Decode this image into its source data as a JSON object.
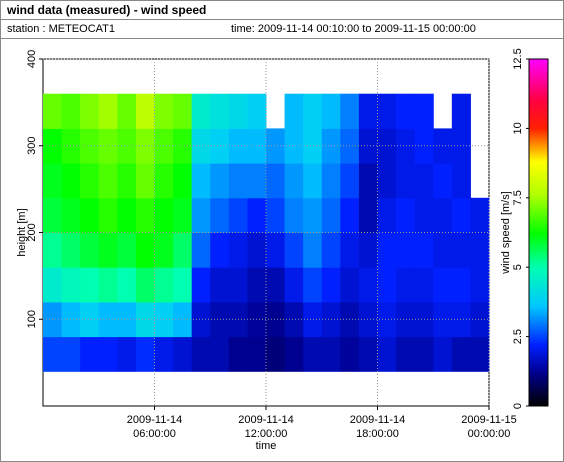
{
  "chart_data": {
    "type": "heatmap",
    "title": "wind data (measured) - wind speed",
    "station": "station : METEOCAT1",
    "time_range": "time: 2009-11-14 00:10:00 to 2009-11-15 00:00:00",
    "xlabel": "time",
    "ylabel": "height [m]",
    "colorbar_label": "wind speed [m/s]",
    "xlim": [
      0,
      24
    ],
    "ylim": [
      0,
      400
    ],
    "xticks": [
      {
        "value": 6,
        "date": "2009-11-14",
        "label": "06:00:00"
      },
      {
        "value": 12,
        "date": "2009-11-14",
        "label": "12:00:00"
      },
      {
        "value": 18,
        "date": "2009-11-14",
        "label": "18:00:00"
      },
      {
        "value": 24,
        "date": "2009-11-15",
        "label": "00:00:00"
      }
    ],
    "yticks": [
      100,
      200,
      300,
      400
    ],
    "grid": true,
    "x": [
      0.5,
      1.5,
      2.5,
      3.5,
      4.5,
      5.5,
      6.5,
      7.5,
      8.5,
      9.5,
      10.5,
      11.5,
      12.5,
      13.5,
      14.5,
      15.5,
      16.5,
      17.5,
      18.5,
      19.5,
      20.5,
      21.5,
      22.5,
      23.5
    ],
    "y": [
      60,
      100,
      140,
      180,
      220,
      260,
      300,
      340
    ],
    "z": [
      [
        2.5,
        2.5,
        2.2,
        2.2,
        2.0,
        2.3,
        2.0,
        1.8,
        1.5,
        1.5,
        1.2,
        1.2,
        1.0,
        1.2,
        1.5,
        1.5,
        1.3,
        1.5,
        1.8,
        1.5,
        1.5,
        1.8,
        1.5,
        1.5
      ],
      [
        3.2,
        3.5,
        3.8,
        3.5,
        3.5,
        4.0,
        3.8,
        3.5,
        1.8,
        1.5,
        1.5,
        1.3,
        1.2,
        1.5,
        2.0,
        1.8,
        1.5,
        1.8,
        2.0,
        1.8,
        1.8,
        2.0,
        2.0,
        1.8
      ],
      [
        4.5,
        4.8,
        5.0,
        5.2,
        5.0,
        5.5,
        5.2,
        5.0,
        2.2,
        1.8,
        1.8,
        1.5,
        1.5,
        2.0,
        2.5,
        2.2,
        1.8,
        2.0,
        2.2,
        2.0,
        2.0,
        2.2,
        2.2,
        2.0
      ],
      [
        5.2,
        5.5,
        5.8,
        6.0,
        5.8,
        6.2,
        6.0,
        5.5,
        2.8,
        2.2,
        2.0,
        1.8,
        2.0,
        2.5,
        3.0,
        2.5,
        2.0,
        1.8,
        2.2,
        2.2,
        2.2,
        2.0,
        2.0,
        2.0
      ],
      [
        5.8,
        6.0,
        6.2,
        6.5,
        6.2,
        6.5,
        6.2,
        6.0,
        3.2,
        2.8,
        2.5,
        2.2,
        2.5,
        3.0,
        3.2,
        2.8,
        2.2,
        1.5,
        2.0,
        2.2,
        2.0,
        2.0,
        2.2,
        2.0
      ],
      [
        6.0,
        6.2,
        6.5,
        6.8,
        6.5,
        7.0,
        6.5,
        6.2,
        3.5,
        3.2,
        3.0,
        3.0,
        2.8,
        3.2,
        3.5,
        3.0,
        2.5,
        1.5,
        1.8,
        2.0,
        2.0,
        2.2,
        2.0,
        null
      ],
      [
        6.2,
        6.5,
        6.8,
        7.0,
        6.8,
        7.2,
        6.8,
        6.5,
        4.0,
        3.8,
        3.5,
        3.5,
        3.2,
        3.5,
        3.8,
        3.2,
        2.8,
        1.8,
        1.8,
        2.0,
        2.2,
        2.0,
        2.0,
        null
      ],
      [
        7.0,
        6.8,
        7.2,
        7.5,
        7.0,
        7.8,
        7.2,
        7.0,
        4.5,
        4.2,
        4.0,
        3.8,
        null,
        3.5,
        3.8,
        3.5,
        3.0,
        2.0,
        2.0,
        2.2,
        2.2,
        null,
        2.0,
        null
      ]
    ],
    "clim": [
      0,
      12.5
    ],
    "cticks": [
      0,
      2.5,
      5,
      7.5,
      10,
      12.5
    ],
    "colorscale": [
      {
        "value": 0,
        "color": "#000000"
      },
      {
        "value": 1.2,
        "color": "#000090"
      },
      {
        "value": 2.2,
        "color": "#0020ff"
      },
      {
        "value": 3.6,
        "color": "#00c8ff"
      },
      {
        "value": 5,
        "color": "#00ffb0"
      },
      {
        "value": 6.2,
        "color": "#00ff00"
      },
      {
        "value": 7.6,
        "color": "#b0ff00"
      },
      {
        "value": 8.8,
        "color": "#ffff00"
      },
      {
        "value": 10,
        "color": "#ff2000"
      },
      {
        "value": 11,
        "color": "#ff0040"
      },
      {
        "value": 12.5,
        "color": "#ff00ff"
      }
    ]
  }
}
